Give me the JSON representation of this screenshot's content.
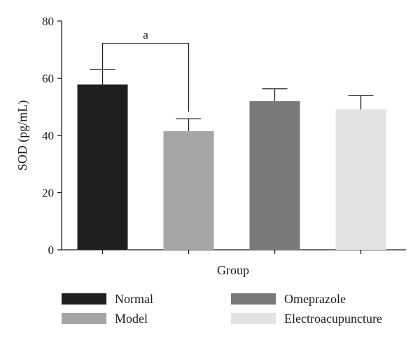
{
  "chart_data": {
    "type": "bar",
    "title": "",
    "xlabel": "Group",
    "ylabel": "SOD (pg/mL)",
    "ylim": [
      0,
      80
    ],
    "yticks": [
      "0",
      "20",
      "40",
      "60",
      "80"
    ],
    "grid": false,
    "legend_placement": "bottom",
    "categories": [
      "Normal",
      "Model",
      "Omeprazole",
      "Electroacupuncture"
    ],
    "values": [
      57.8,
      41.5,
      52.0,
      49.2
    ],
    "errors": [
      5.2,
      4.3,
      4.3,
      4.7
    ],
    "colors": [
      "#1f1f1f",
      "#a6a6a6",
      "#7a7a7a",
      "#e3e3e3"
    ],
    "annotation": {
      "label": "a",
      "between": [
        "Normal",
        "Model"
      ]
    }
  }
}
